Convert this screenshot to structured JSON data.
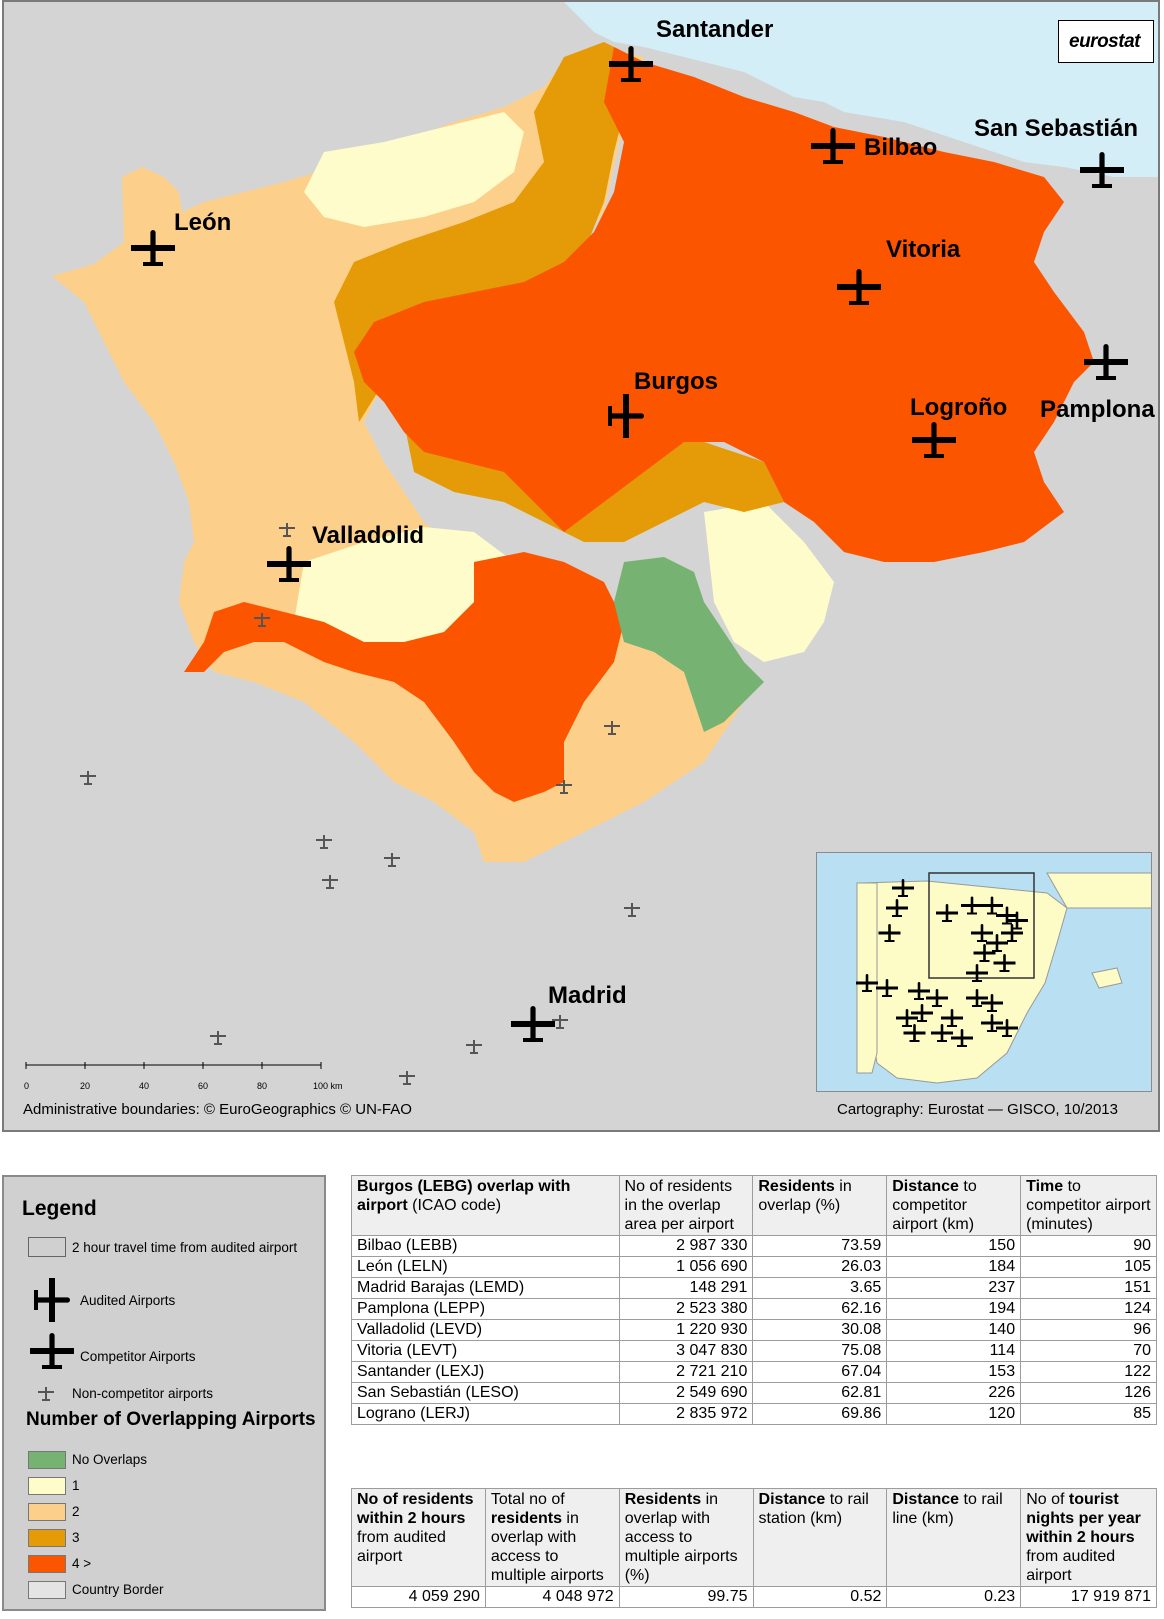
{
  "map": {
    "cities": [
      {
        "id": "santander",
        "name": "Santander"
      },
      {
        "id": "bilbao",
        "name": "Bilbao"
      },
      {
        "id": "san-sebastian",
        "name": "San Sebastián"
      },
      {
        "id": "leon",
        "name": "León"
      },
      {
        "id": "vitoria",
        "name": "Vitoria"
      },
      {
        "id": "burgos",
        "name": "Burgos"
      },
      {
        "id": "logrono",
        "name": "Logroño"
      },
      {
        "id": "pamplona",
        "name": "Pamplona"
      },
      {
        "id": "valladolid",
        "name": "Valladolid"
      },
      {
        "id": "madrid",
        "name": "Madrid"
      }
    ],
    "logo": "eurostat",
    "scale_labels": [
      "0",
      "20",
      "40",
      "60",
      "80",
      "100 km"
    ],
    "credit_left": "Administrative boundaries: © EuroGeographics © UN-FAO",
    "credit_right": "Cartography: Eurostat — GISCO, 10/2013",
    "colors": {
      "sea": "#d4eef8",
      "outside": "#d4d4d4",
      "no_overlap": "#76b372",
      "one": "#fefcca",
      "two": "#fcd08a",
      "three": "#e59a07",
      "four_plus": "#fc5500"
    }
  },
  "legend": {
    "title": "Legend",
    "items": [
      {
        "label": "2 hour travel time from audited airport",
        "icon": "rectangle"
      },
      {
        "label": "Audited Airports",
        "icon": "audited-plane-icon"
      },
      {
        "label": "Competitor Airports",
        "icon": "competitor-plane-icon"
      },
      {
        "label": "Non-competitor airports",
        "icon": "small-plane-icon"
      }
    ],
    "subtitle": "Number of Overlapping Airports",
    "classes": [
      {
        "label": "No Overlaps",
        "color": "#76b372"
      },
      {
        "label": "1",
        "color": "#fefcca"
      },
      {
        "label": "2",
        "color": "#fcd08a"
      },
      {
        "label": "3",
        "color": "#e59a07"
      },
      {
        "label": "4 >",
        "color": "#fc5500"
      },
      {
        "label": "Country Border",
        "color": "#e4e4e4"
      }
    ]
  },
  "overlap_table": {
    "headers": [
      {
        "bold": "Burgos (LEBG) overlap with airport",
        "rest": " (ICAO code)"
      },
      {
        "bold": "",
        "rest": "No of residents in the overlap area per airport"
      },
      {
        "bold": "Residents",
        "rest": " in overlap (%)"
      },
      {
        "bold": "Distance",
        "rest": " to competitor airport (km)"
      },
      {
        "bold": "Time",
        "rest": " to competitor airport (minutes)"
      }
    ],
    "rows": [
      [
        "Bilbao (LEBB)",
        "2 987 330",
        "73.59",
        "150",
        "90"
      ],
      [
        "León (LELN)",
        "1 056 690",
        "26.03",
        "184",
        "105"
      ],
      [
        "Madrid Barajas (LEMD)",
        "148 291",
        "3.65",
        "237",
        "151"
      ],
      [
        "Pamplona (LEPP)",
        "2 523 380",
        "62.16",
        "194",
        "124"
      ],
      [
        "Valladolid (LEVD)",
        "1 220 930",
        "30.08",
        "140",
        "96"
      ],
      [
        "Vitoria (LEVT)",
        "3 047 830",
        "75.08",
        "114",
        "70"
      ],
      [
        "Santander (LEXJ)",
        "2 721 210",
        "67.04",
        "153",
        "122"
      ],
      [
        "San Sebastián (LESO)",
        "2 549 690",
        "62.81",
        "226",
        "126"
      ],
      [
        "Lograno (LERJ)",
        "2 835 972",
        "69.86",
        "120",
        "85"
      ]
    ]
  },
  "summary_table": {
    "headers": [
      {
        "b1": "No of residents within 2 hours",
        "r1": " from audited airport"
      },
      {
        "b1": "",
        "r1": "Total no of ",
        "b2": "residents",
        "r2": " in overlap with access to multiple airports"
      },
      {
        "b1": "Residents",
        "r1": " in overlap with access to multiple airports (%)"
      },
      {
        "b1": "Distance",
        "r1": " to rail station (km)"
      },
      {
        "b1": "Distance",
        "r1": " to rail line (km)"
      },
      {
        "b1": "",
        "r1": "No of ",
        "b2": "tourist nights per year within 2 hours",
        "r2": " from audited airport"
      }
    ],
    "values": [
      "4 059 290",
      "4 048 972",
      "99.75",
      "0.52",
      "0.23",
      "17 919 871"
    ]
  }
}
